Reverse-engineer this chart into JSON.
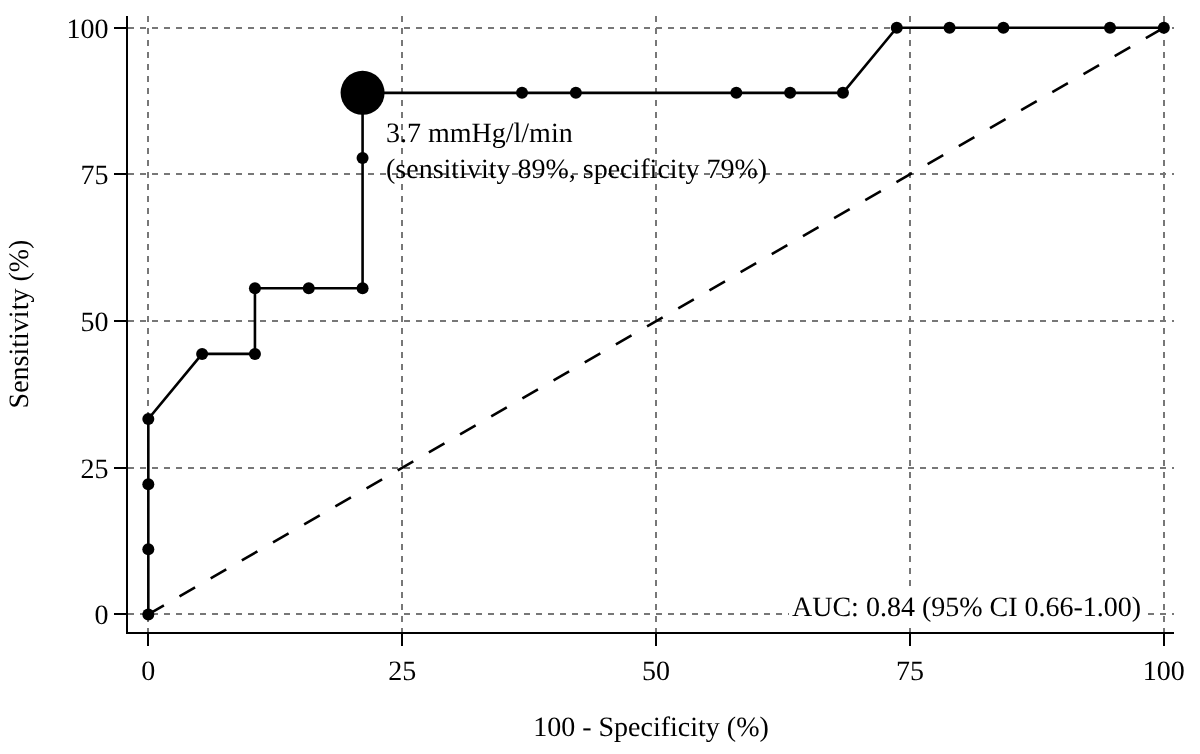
{
  "chart_data": {
    "type": "line",
    "xlabel": "100 - Specificity (%)",
    "ylabel": "Sensitivity (%)",
    "series": [
      {
        "color": "#000000",
        "marker": "circle",
        "line_style": "solid",
        "x": [
          0,
          0,
          0,
          0,
          5.3,
          10.5,
          10.5,
          15.8,
          21.1,
          21.1,
          21.1,
          36.8,
          42.1,
          57.9,
          63.2,
          68.4,
          73.7,
          78.9,
          84.2,
          94.7,
          100
        ],
        "values": [
          0,
          11.1,
          22.2,
          33.3,
          44.4,
          44.4,
          55.6,
          55.6,
          55.6,
          77.8,
          88.9,
          88.9,
          88.9,
          88.9,
          88.9,
          88.9,
          100,
          100,
          100,
          100,
          100
        ]
      },
      {
        "type": "bubble",
        "color": "#000000",
        "x": [
          21.1
        ],
        "values": [
          88.9
        ],
        "sizes": [
          1
        ]
      },
      {
        "type": "line",
        "color": "#000000",
        "marker": "none",
        "line_style": "dashed",
        "x": [
          0,
          100
        ],
        "values": [
          0,
          100
        ]
      }
    ],
    "annotations": [
      {
        "text": "3.7 mmHg/l/min\n(sensitivity 89%, specificity 79%)",
        "x": 21.1,
        "y": 88.9
      },
      "AUC: 0.84 (95% CI 0.66-1.00)"
    ],
    "xlim": [
      -2,
      101
    ],
    "ylim": [
      -3,
      102
    ],
    "xticks": [
      0,
      25,
      50,
      75,
      100
    ],
    "yticks": [
      0,
      25,
      50,
      75,
      100
    ],
    "grid": true,
    "legend": false
  }
}
